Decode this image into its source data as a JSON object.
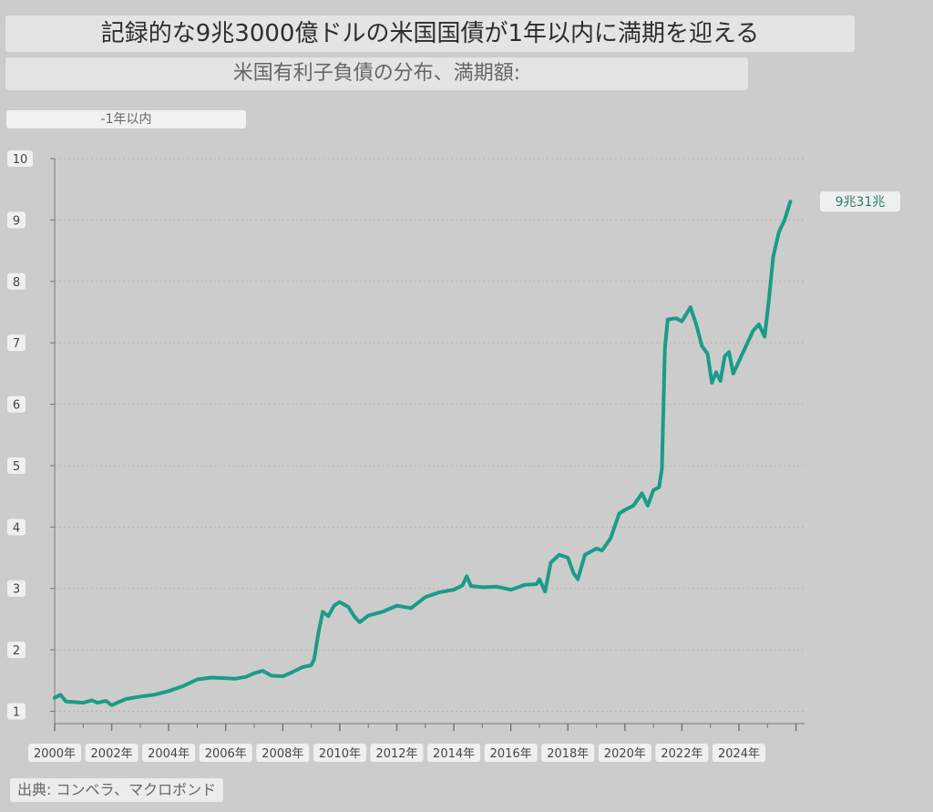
{
  "header": {
    "title": "記録的な9兆3000億ドルの米国国債が1年以内に満期を迎える",
    "subtitle": "米国有利子負債の分布、満期額:"
  },
  "source": "出典: コンベラ、マクロボンド",
  "chart_data": {
    "type": "line",
    "title": "記録的な9兆3000億ドルの米国国債が1年以内に満期を迎える",
    "subtitle": "米国有利子負債の分布、満期額:",
    "series": [
      {
        "name": "-1年以内",
        "color": "#1a9c88",
        "points": [
          [
            2000.0,
            1.22
          ],
          [
            2000.2,
            1.27
          ],
          [
            2000.4,
            1.16
          ],
          [
            2000.7,
            1.15
          ],
          [
            2001.0,
            1.14
          ],
          [
            2001.3,
            1.18
          ],
          [
            2001.5,
            1.14
          ],
          [
            2001.8,
            1.17
          ],
          [
            2002.0,
            1.1
          ],
          [
            2002.2,
            1.14
          ],
          [
            2002.5,
            1.2
          ],
          [
            2003.0,
            1.24
          ],
          [
            2003.5,
            1.27
          ],
          [
            2004.0,
            1.33
          ],
          [
            2004.5,
            1.41
          ],
          [
            2005.0,
            1.52
          ],
          [
            2005.5,
            1.55
          ],
          [
            2006.0,
            1.54
          ],
          [
            2006.3,
            1.53
          ],
          [
            2006.7,
            1.56
          ],
          [
            2007.0,
            1.62
          ],
          [
            2007.3,
            1.66
          ],
          [
            2007.6,
            1.58
          ],
          [
            2008.0,
            1.57
          ],
          [
            2008.3,
            1.63
          ],
          [
            2008.7,
            1.72
          ],
          [
            2009.0,
            1.75
          ],
          [
            2009.1,
            1.85
          ],
          [
            2009.25,
            2.28
          ],
          [
            2009.4,
            2.62
          ],
          [
            2009.6,
            2.55
          ],
          [
            2009.8,
            2.72
          ],
          [
            2010.0,
            2.78
          ],
          [
            2010.3,
            2.7
          ],
          [
            2010.5,
            2.55
          ],
          [
            2010.7,
            2.45
          ],
          [
            2011.0,
            2.56
          ],
          [
            2011.5,
            2.62
          ],
          [
            2012.0,
            2.72
          ],
          [
            2012.5,
            2.68
          ],
          [
            2013.0,
            2.86
          ],
          [
            2013.5,
            2.94
          ],
          [
            2014.0,
            2.98
          ],
          [
            2014.3,
            3.05
          ],
          [
            2014.45,
            3.2
          ],
          [
            2014.6,
            3.04
          ],
          [
            2015.0,
            3.02
          ],
          [
            2015.5,
            3.03
          ],
          [
            2016.0,
            2.98
          ],
          [
            2016.5,
            3.06
          ],
          [
            2016.9,
            3.07
          ],
          [
            2017.0,
            3.15
          ],
          [
            2017.2,
            2.95
          ],
          [
            2017.4,
            3.42
          ],
          [
            2017.7,
            3.55
          ],
          [
            2018.0,
            3.5
          ],
          [
            2018.2,
            3.25
          ],
          [
            2018.35,
            3.15
          ],
          [
            2018.6,
            3.55
          ],
          [
            2019.0,
            3.65
          ],
          [
            2019.2,
            3.62
          ],
          [
            2019.5,
            3.82
          ],
          [
            2019.8,
            4.22
          ],
          [
            2020.0,
            4.28
          ],
          [
            2020.3,
            4.35
          ],
          [
            2020.6,
            4.55
          ],
          [
            2020.8,
            4.35
          ],
          [
            2021.0,
            4.6
          ],
          [
            2021.2,
            4.65
          ],
          [
            2021.3,
            4.95
          ],
          [
            2021.4,
            6.9
          ],
          [
            2021.5,
            7.38
          ],
          [
            2021.8,
            7.4
          ],
          [
            2022.0,
            7.35
          ],
          [
            2022.3,
            7.58
          ],
          [
            2022.5,
            7.3
          ],
          [
            2022.7,
            6.95
          ],
          [
            2022.9,
            6.82
          ],
          [
            2023.05,
            6.35
          ],
          [
            2023.2,
            6.52
          ],
          [
            2023.35,
            6.38
          ],
          [
            2023.5,
            6.78
          ],
          [
            2023.65,
            6.85
          ],
          [
            2023.8,
            6.5
          ],
          [
            2024.0,
            6.7
          ],
          [
            2024.3,
            7.0
          ],
          [
            2024.5,
            7.2
          ],
          [
            2024.7,
            7.3
          ],
          [
            2024.9,
            7.1
          ],
          [
            2025.05,
            7.7
          ],
          [
            2025.2,
            8.4
          ],
          [
            2025.4,
            8.8
          ],
          [
            2025.6,
            9.0
          ],
          [
            2025.8,
            9.3
          ]
        ]
      }
    ],
    "x_ticks": [
      "2000年",
      "2002年",
      "2004年",
      "2006年",
      "2008年",
      "2010年",
      "2012年",
      "2014年",
      "2016年",
      "2018年",
      "2020年",
      "2022年",
      "2024年"
    ],
    "x_tick_values": [
      2000,
      2002,
      2004,
      2006,
      2008,
      2010,
      2012,
      2014,
      2016,
      2018,
      2020,
      2022,
      2024
    ],
    "y_ticks": [
      "1",
      "2",
      "3",
      "4",
      "5",
      "6",
      "7",
      "8",
      "9",
      "10"
    ],
    "xlim": [
      2000,
      2026.3
    ],
    "ylim": [
      0.8,
      10.0
    ],
    "last_value_label": "9兆31兆",
    "grid": "horizontal-dotted",
    "background": "#cccccc",
    "line_color": "#1a9c88"
  }
}
